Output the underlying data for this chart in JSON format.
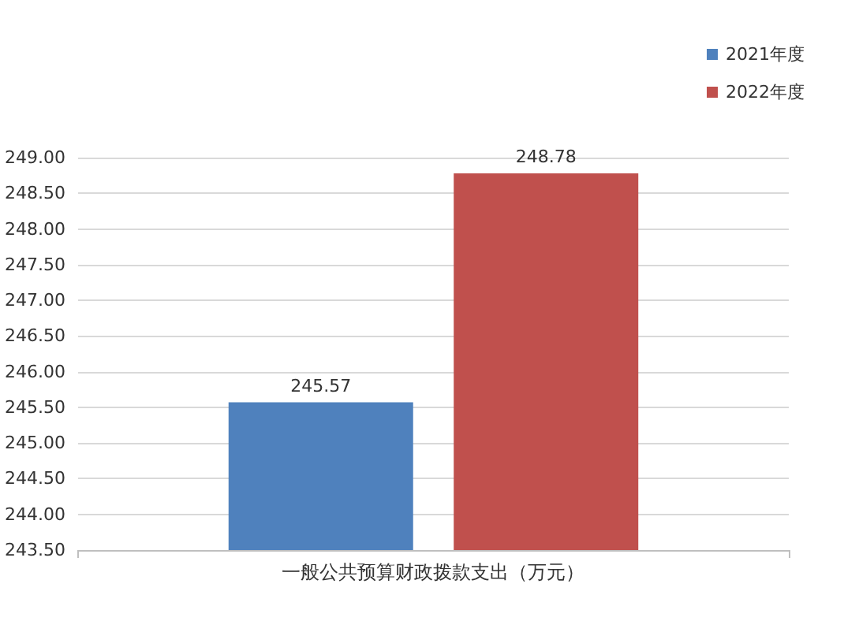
{
  "chart_data": {
    "type": "bar",
    "categories": [
      "一般公共预算财政拨款支出（万元）"
    ],
    "series": [
      {
        "name": "2021年度",
        "color": "#4f81bd",
        "values": [
          245.57
        ]
      },
      {
        "name": "2022年度",
        "color": "#c0504d",
        "values": [
          248.78
        ]
      }
    ],
    "ylim": [
      243.5,
      249
    ],
    "yticks": [
      {
        "value": 243.5,
        "label": "243.50"
      },
      {
        "value": 244,
        "label": "244.00"
      },
      {
        "value": 244.5,
        "label": "244.50"
      },
      {
        "value": 245,
        "label": "245.00"
      },
      {
        "value": 245.5,
        "label": "245.50"
      },
      {
        "value": 246,
        "label": "246.00"
      },
      {
        "value": 246.5,
        "label": "246.50"
      },
      {
        "value": 247,
        "label": "247.00"
      },
      {
        "value": 247.5,
        "label": "247.50"
      },
      {
        "value": 248,
        "label": "248.00"
      },
      {
        "value": 248.5,
        "label": "248.50"
      },
      {
        "value": 249,
        "label": "249.00"
      }
    ],
    "grid": "y",
    "legend": "top right",
    "data_labels": true
  }
}
